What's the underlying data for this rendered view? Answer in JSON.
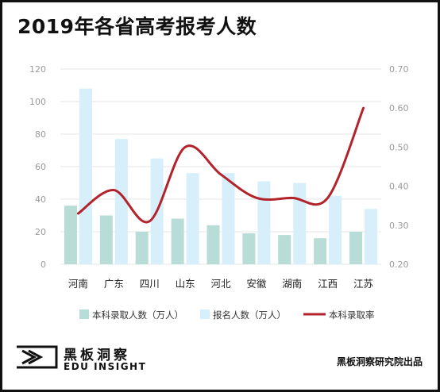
{
  "title": "2019年各省高考报考人数",
  "chart_data": {
    "type": "bar",
    "categories": [
      "河南",
      "广东",
      "四川",
      "山东",
      "河北",
      "安徽",
      "湖南",
      "江西",
      "江苏"
    ],
    "series": [
      {
        "name": "本科录取人数（万人）",
        "type": "bar",
        "axis": "left",
        "color": "#b8ddd6",
        "values": [
          36,
          30,
          20,
          28,
          24,
          19,
          18,
          16,
          20
        ]
      },
      {
        "name": "报名人数（万人）",
        "type": "bar",
        "axis": "left",
        "color": "#d6effa",
        "values": [
          108,
          77,
          65,
          56,
          56,
          51,
          50,
          42,
          34
        ]
      },
      {
        "name": "本科录取率",
        "type": "line",
        "axis": "right",
        "color": "#b3232b",
        "values": [
          0.33,
          0.39,
          0.31,
          0.5,
          0.43,
          0.37,
          0.37,
          0.37,
          0.6
        ]
      }
    ],
    "yleft": {
      "min": 0,
      "max": 120,
      "ticks": [
        "0",
        "20",
        "40",
        "60",
        "80",
        "100",
        "120"
      ]
    },
    "yright": {
      "min": 0.2,
      "max": 0.7,
      "ticks": [
        "0.20",
        "0.30",
        "0.40",
        "0.50",
        "0.60",
        "0.70"
      ]
    },
    "grid": true,
    "legend": "bottom"
  },
  "footer": {
    "brand_cn": "黑板洞察",
    "brand_en": "EDU INSIGHT",
    "source": "黑板洞察研究院出品"
  }
}
